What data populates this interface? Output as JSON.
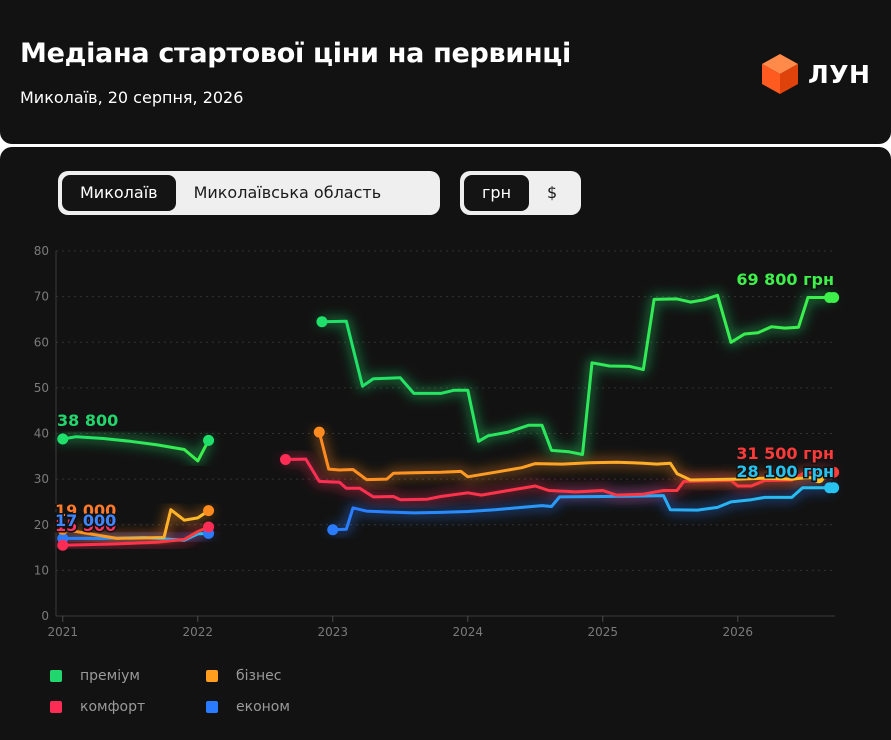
{
  "header": {
    "title": "Медіана стартової ціни на первинці",
    "subtitle": "Миколаїв, 20 серпня, 2026",
    "logo_text": "ЛУН",
    "logo_color": "#ff5a1f"
  },
  "controls": {
    "region": [
      {
        "label": "Миколаїв",
        "active": true
      },
      {
        "label": "Миколаївська область",
        "active": false
      }
    ],
    "currency": [
      {
        "label": "грн",
        "active": true
      },
      {
        "label": "$",
        "active": false
      }
    ]
  },
  "chart_data": {
    "type": "line",
    "ylim": [
      0,
      80
    ],
    "yticks": [
      0,
      10,
      20,
      30,
      40,
      50,
      60,
      70,
      80
    ],
    "xlim": [
      2020.95,
      2026.72
    ],
    "xticks": [
      {
        "label": "2021",
        "x": 2021.0
      },
      {
        "label": "2022",
        "x": 2022.0
      },
      {
        "label": "2023",
        "x": 2023.0
      },
      {
        "label": "2024",
        "x": 2024.0
      },
      {
        "label": "2025",
        "x": 2025.0
      },
      {
        "label": "2026",
        "x": 2026.0
      }
    ],
    "grid": true,
    "series": [
      {
        "name": "економ",
        "color": "#2a7bff",
        "color_end": "#27c2f0",
        "segments": [
          [
            [
              2021.0,
              17.0
            ],
            [
              2021.3,
              17.0
            ],
            [
              2021.6,
              17.2
            ],
            [
              2021.9,
              16.6
            ],
            [
              2022.0,
              18.0
            ],
            [
              2022.08,
              18.1
            ]
          ],
          [
            [
              2023.0,
              18.9
            ],
            [
              2023.1,
              19.0
            ],
            [
              2023.15,
              23.7
            ],
            [
              2023.25,
              23.0
            ],
            [
              2023.4,
              22.8
            ],
            [
              2023.6,
              22.6
            ],
            [
              2023.8,
              22.7
            ],
            [
              2024.0,
              22.9
            ],
            [
              2024.2,
              23.3
            ],
            [
              2024.4,
              23.8
            ],
            [
              2024.55,
              24.2
            ],
            [
              2024.62,
              24.0
            ],
            [
              2024.68,
              26.1
            ],
            [
              2025.0,
              26.2
            ],
            [
              2025.3,
              26.3
            ],
            [
              2025.45,
              26.4
            ],
            [
              2025.5,
              23.3
            ],
            [
              2025.7,
              23.2
            ],
            [
              2025.85,
              23.8
            ],
            [
              2025.95,
              25.0
            ],
            [
              2026.1,
              25.5
            ],
            [
              2026.2,
              26.0
            ],
            [
              2026.4,
              26.0
            ],
            [
              2026.48,
              28.1
            ],
            [
              2026.6,
              28.1
            ],
            [
              2026.68,
              28.1
            ]
          ]
        ]
      },
      {
        "name": "комфорт",
        "color": "#ff2d55",
        "color_end": "#ff3b3b",
        "segments": [
          [
            [
              2021.0,
              15.5
            ],
            [
              2021.4,
              15.8
            ],
            [
              2021.7,
              16.2
            ],
            [
              2021.9,
              16.8
            ],
            [
              2022.0,
              18.5
            ],
            [
              2022.08,
              19.5
            ]
          ],
          [
            [
              2022.65,
              34.3
            ],
            [
              2022.8,
              34.4
            ],
            [
              2022.9,
              29.5
            ],
            [
              2023.05,
              29.3
            ],
            [
              2023.1,
              28.0
            ],
            [
              2023.2,
              28.0
            ],
            [
              2023.3,
              26.1
            ],
            [
              2023.45,
              26.2
            ],
            [
              2023.5,
              25.5
            ],
            [
              2023.7,
              25.6
            ],
            [
              2023.8,
              26.2
            ],
            [
              2024.0,
              27.0
            ],
            [
              2024.1,
              26.5
            ],
            [
              2024.3,
              27.5
            ],
            [
              2024.5,
              28.5
            ],
            [
              2024.6,
              27.5
            ],
            [
              2024.8,
              27.2
            ],
            [
              2025.0,
              27.5
            ],
            [
              2025.1,
              26.5
            ],
            [
              2025.3,
              26.7
            ],
            [
              2025.45,
              27.5
            ],
            [
              2025.55,
              27.5
            ],
            [
              2025.6,
              29.5
            ],
            [
              2025.8,
              29.6
            ],
            [
              2025.95,
              29.7
            ],
            [
              2026.0,
              28.5
            ],
            [
              2026.1,
              28.5
            ],
            [
              2026.2,
              29.7
            ],
            [
              2026.4,
              29.8
            ],
            [
              2026.5,
              31.5
            ],
            [
              2026.68,
              31.5
            ]
          ]
        ]
      },
      {
        "name": "бізнес",
        "color": "#ff8a1f",
        "color_end": "#ffc12b",
        "segments": [
          [
            [
              2021.0,
              19.0
            ],
            [
              2021.4,
              17.0
            ],
            [
              2021.75,
              17.2
            ],
            [
              2021.8,
              23.3
            ],
            [
              2021.9,
              21.0
            ],
            [
              2022.0,
              21.5
            ],
            [
              2022.08,
              23.1
            ]
          ],
          [
            [
              2022.9,
              40.3
            ],
            [
              2022.97,
              32.2
            ],
            [
              2023.05,
              32.0
            ],
            [
              2023.15,
              32.1
            ],
            [
              2023.25,
              29.9
            ],
            [
              2023.4,
              30.0
            ],
            [
              2023.45,
              31.3
            ],
            [
              2023.6,
              31.4
            ],
            [
              2023.8,
              31.5
            ],
            [
              2023.95,
              31.7
            ],
            [
              2024.0,
              30.5
            ],
            [
              2024.2,
              31.5
            ],
            [
              2024.4,
              32.5
            ],
            [
              2024.5,
              33.4
            ],
            [
              2024.7,
              33.3
            ],
            [
              2024.9,
              33.6
            ],
            [
              2025.1,
              33.7
            ],
            [
              2025.3,
              33.5
            ],
            [
              2025.4,
              33.3
            ],
            [
              2025.5,
              33.5
            ],
            [
              2025.55,
              31.2
            ],
            [
              2025.65,
              29.8
            ],
            [
              2025.8,
              29.9
            ],
            [
              2026.0,
              30.0
            ],
            [
              2026.2,
              30.2
            ],
            [
              2026.4,
              30.0
            ],
            [
              2026.5,
              30.3
            ],
            [
              2026.6,
              30.3
            ]
          ]
        ]
      },
      {
        "name": "преміум",
        "color": "#1fe06a",
        "color_end": "#3df04a",
        "segments": [
          [
            [
              2021.0,
              38.8
            ],
            [
              2021.1,
              39.3
            ],
            [
              2021.3,
              38.9
            ],
            [
              2021.5,
              38.3
            ],
            [
              2021.7,
              37.5
            ],
            [
              2021.9,
              36.5
            ],
            [
              2022.0,
              34.0
            ],
            [
              2022.08,
              38.5
            ]
          ],
          [
            [
              2022.92,
              64.5
            ],
            [
              2023.1,
              64.6
            ],
            [
              2023.22,
              50.4
            ],
            [
              2023.3,
              52.0
            ],
            [
              2023.5,
              52.2
            ],
            [
              2023.6,
              48.8
            ],
            [
              2023.8,
              48.8
            ],
            [
              2023.9,
              49.5
            ],
            [
              2024.0,
              49.5
            ],
            [
              2024.08,
              38.3
            ],
            [
              2024.15,
              39.5
            ],
            [
              2024.3,
              40.3
            ],
            [
              2024.45,
              41.8
            ],
            [
              2024.55,
              41.8
            ],
            [
              2024.62,
              36.3
            ],
            [
              2024.75,
              36.0
            ],
            [
              2024.85,
              35.4
            ],
            [
              2024.92,
              55.5
            ],
            [
              2025.05,
              54.8
            ],
            [
              2025.2,
              54.7
            ],
            [
              2025.3,
              54.0
            ],
            [
              2025.38,
              69.4
            ],
            [
              2025.55,
              69.5
            ],
            [
              2025.65,
              68.8
            ],
            [
              2025.75,
              69.3
            ],
            [
              2025.85,
              70.3
            ],
            [
              2025.95,
              60.0
            ],
            [
              2026.05,
              61.8
            ],
            [
              2026.15,
              62.1
            ],
            [
              2026.25,
              63.4
            ],
            [
              2026.35,
              63.1
            ],
            [
              2026.45,
              63.3
            ],
            [
              2026.52,
              69.8
            ],
            [
              2026.68,
              69.8
            ]
          ]
        ]
      }
    ],
    "annotations": [
      {
        "text": "38 800",
        "color": "#22d56d",
        "side": "left"
      },
      {
        "text": "19 000",
        "color": "#ff7a2a",
        "side": "left"
      },
      {
        "text": "15 500",
        "color": "#ff3560",
        "side": "left"
      },
      {
        "text": "17 000",
        "color": "#3f86ff",
        "side": "left"
      },
      {
        "text": "69 800 грн",
        "color": "#3df04a",
        "side": "right"
      },
      {
        "text": "31 500 грн",
        "color": "#ff3a3a",
        "side": "right"
      },
      {
        "text": "28 100 грн",
        "color": "#27c2f0",
        "side": "right"
      }
    ],
    "legend": [
      {
        "label": "преміум",
        "color": "#22d66e"
      },
      {
        "label": "бізнес",
        "color": "#ff9d1f"
      },
      {
        "label": "комфорт",
        "color": "#ff2d55"
      },
      {
        "label": "економ",
        "color": "#2a7bff"
      }
    ]
  }
}
